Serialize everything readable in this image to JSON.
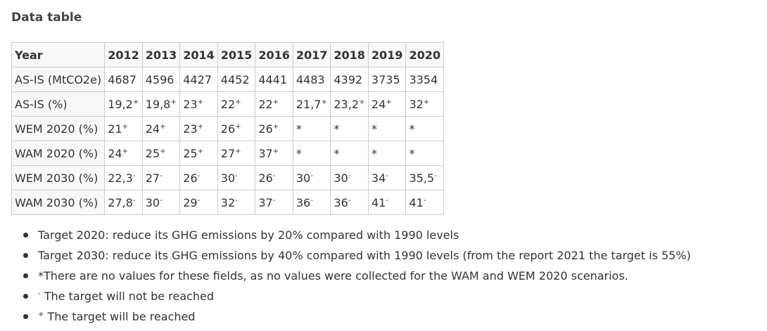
{
  "heading": "Data table",
  "table": {
    "header_label": "Year",
    "years": [
      "2012",
      "2013",
      "2014",
      "2015",
      "2016",
      "2017",
      "2018",
      "2019",
      "2020"
    ],
    "rows": [
      {
        "label": "AS-IS (MtCO2e)",
        "cells": [
          {
            "v": "4687",
            "s": ""
          },
          {
            "v": "4596",
            "s": ""
          },
          {
            "v": "4427",
            "s": ""
          },
          {
            "v": "4452",
            "s": ""
          },
          {
            "v": "4441",
            "s": ""
          },
          {
            "v": "4483",
            "s": ""
          },
          {
            "v": "4392",
            "s": ""
          },
          {
            "v": "3735",
            "s": ""
          },
          {
            "v": "3354",
            "s": ""
          }
        ]
      },
      {
        "label": "AS-IS (%)",
        "cells": [
          {
            "v": "19,2",
            "s": "+"
          },
          {
            "v": "19,8",
            "s": "+"
          },
          {
            "v": "23",
            "s": "+"
          },
          {
            "v": "22",
            "s": "+"
          },
          {
            "v": "22",
            "s": "+"
          },
          {
            "v": "21,7",
            "s": "+"
          },
          {
            "v": "23,2",
            "s": "+"
          },
          {
            "v": "24",
            "s": "+"
          },
          {
            "v": "32",
            "s": "+"
          }
        ]
      },
      {
        "label": "WEM 2020 (%)",
        "cells": [
          {
            "v": "21",
            "s": "+"
          },
          {
            "v": "24",
            "s": "+"
          },
          {
            "v": "23",
            "s": "+"
          },
          {
            "v": "26",
            "s": "+"
          },
          {
            "v": "26",
            "s": "+"
          },
          {
            "v": "*",
            "s": ""
          },
          {
            "v": "*",
            "s": ""
          },
          {
            "v": "*",
            "s": ""
          },
          {
            "v": "*",
            "s": ""
          }
        ]
      },
      {
        "label": "WAM 2020 (%)",
        "cells": [
          {
            "v": "24",
            "s": "+"
          },
          {
            "v": "25",
            "s": "+"
          },
          {
            "v": "25",
            "s": "+"
          },
          {
            "v": "27",
            "s": "+"
          },
          {
            "v": "37",
            "s": "+"
          },
          {
            "v": "*",
            "s": ""
          },
          {
            "v": "*",
            "s": ""
          },
          {
            "v": "*",
            "s": ""
          },
          {
            "v": "*",
            "s": ""
          }
        ]
      },
      {
        "label": "WEM 2030 (%)",
        "cells": [
          {
            "v": "22,3",
            "s": "-"
          },
          {
            "v": "27",
            "s": "-"
          },
          {
            "v": "26",
            "s": "-"
          },
          {
            "v": "30",
            "s": "-"
          },
          {
            "v": "26",
            "s": "-"
          },
          {
            "v": "30",
            "s": "-"
          },
          {
            "v": "30",
            "s": "-"
          },
          {
            "v": "34",
            "s": "-"
          },
          {
            "v": "35,5",
            "s": "-"
          }
        ]
      },
      {
        "label": "WAM 2030 (%)",
        "cells": [
          {
            "v": "27,8",
            "s": "-"
          },
          {
            "v": "30",
            "s": "-"
          },
          {
            "v": "29",
            "s": "-"
          },
          {
            "v": "32",
            "s": "-"
          },
          {
            "v": "37",
            "s": "-"
          },
          {
            "v": "36",
            "s": "-"
          },
          {
            "v": "36",
            "s": "-"
          },
          {
            "v": "41",
            "s": "-"
          },
          {
            "v": "41",
            "s": "-"
          }
        ]
      }
    ]
  },
  "notes": [
    {
      "sup": "",
      "text": "Target 2020: reduce its GHG emissions by 20% compared with 1990 levels"
    },
    {
      "sup": "",
      "text": "Target 2030: reduce its GHG emissions by 40% compared with 1990 levels (from the report 2021 the target is 55%)"
    },
    {
      "sup": "",
      "text": "*There are no values for these fields, as no values were collected for the WAM and WEM 2020 scenarios."
    },
    {
      "sup": "-",
      "text": " The target will not be reached"
    },
    {
      "sup": "+",
      "text": " The target will be reached"
    }
  ]
}
